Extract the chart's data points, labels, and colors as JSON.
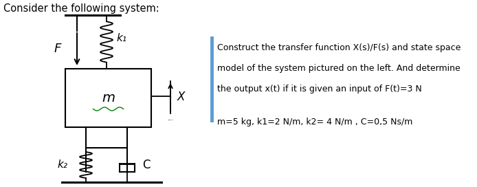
{
  "title": "Consider the following system:",
  "title_fontsize": 10.5,
  "text_color": "#000000",
  "background_color": "#ffffff",
  "label_F": "F",
  "label_k1": "k₁",
  "label_k2": "k₂",
  "label_m": "m",
  "label_C": "C",
  "label_X": "X",
  "right_text_line1": "Construct the transfer function X(s)/F(s) and state space",
  "right_text_line2": "model of the system pictured on the left. And determine",
  "right_text_line3": "the output x(t) if it is given an input of F(t)=3 N",
  "right_text_line4": "m=5 kg, k1=2 N/m, k2= 4 N/m , C=0,5 Ns/m",
  "bar_color": "#5b9bd5",
  "text_fontsize": 9.0,
  "param_fontsize": 9.0
}
